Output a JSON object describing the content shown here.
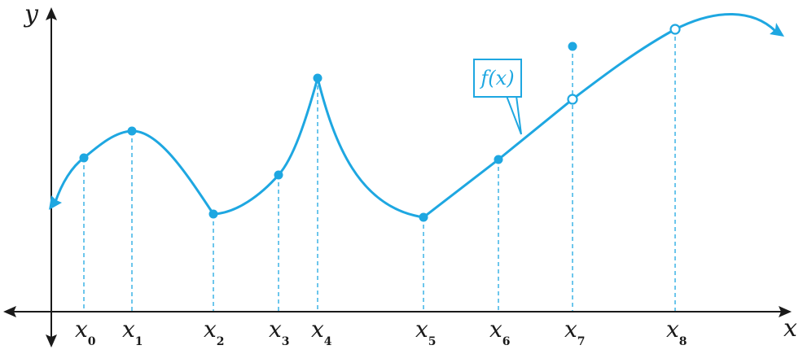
{
  "axes": {
    "x_label": "x",
    "y_label": "y"
  },
  "ticks": [
    {
      "base": "x",
      "sub": "0"
    },
    {
      "base": "x",
      "sub": "1"
    },
    {
      "base": "x",
      "sub": "2"
    },
    {
      "base": "x",
      "sub": "3"
    },
    {
      "base": "x",
      "sub": "4"
    },
    {
      "base": "x",
      "sub": "5"
    },
    {
      "base": "x",
      "sub": "6"
    },
    {
      "base": "x",
      "sub": "7"
    },
    {
      "base": "x",
      "sub": "8"
    }
  ],
  "function_label": "f(x)",
  "colors": {
    "curve": "#1ea7e1",
    "axis": "#1a1a1a"
  }
}
